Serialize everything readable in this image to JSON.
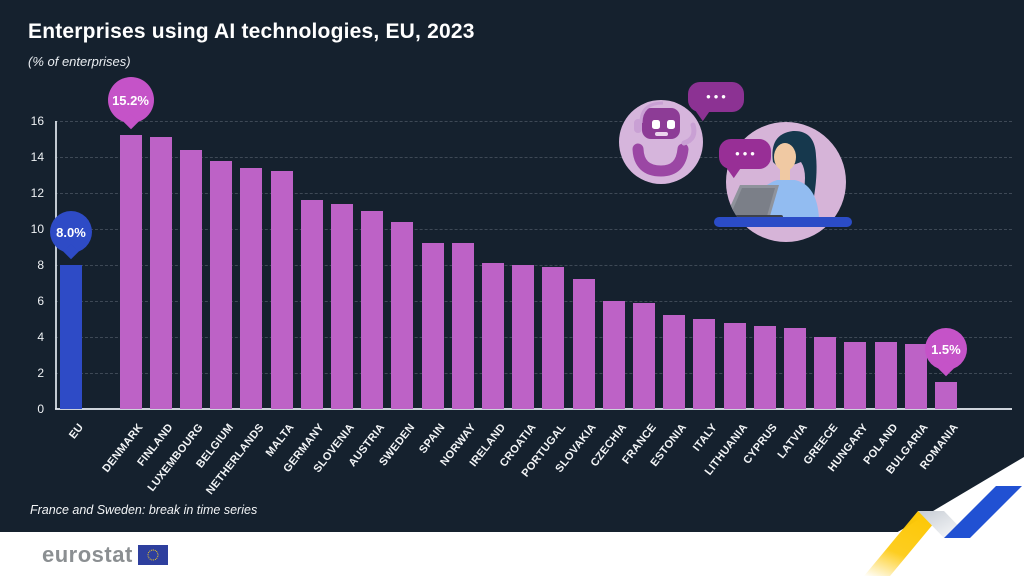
{
  "header": {
    "title": "Enterprises using AI technologies, EU, 2023",
    "subtitle": "(% of enterprises)"
  },
  "note": "France and Sweden: break in time series",
  "footer": {
    "logo_text": "eurostat"
  },
  "illustration": {
    "robot_bubble_dots": "•••",
    "woman_bubble_dots": "•••"
  },
  "colors": {
    "background": "#15212e",
    "bar_default": "#bd62c6",
    "bar_eu": "#2e4bc6",
    "callout_magenta": "#c553c8",
    "callout_blue": "#2e4bc6",
    "gridline": "#3e4956",
    "axis": "#e1e7ee",
    "footer_white": "#ffffff",
    "swoosh_yellow": "#fdc808",
    "swoosh_blue": "#2151d3",
    "swoosh_gray": "#c6ccd4"
  },
  "chart_data": {
    "type": "bar",
    "title": "Enterprises using AI technologies, EU, 2023",
    "subtitle": "(% of enterprises)",
    "xlabel": "",
    "ylabel": "% of enterprises",
    "ylim": [
      0,
      16
    ],
    "yticks": [
      0,
      2,
      4,
      6,
      8,
      10,
      12,
      14,
      16
    ],
    "grid": true,
    "legend": "none",
    "categories": [
      "EU",
      "DENMARK",
      "FINLAND",
      "LUXEMBOURG",
      "BELGIUM",
      "NETHERLANDS",
      "MALTA",
      "GERMANY",
      "SLOVENIA",
      "AUSTRIA",
      "SWEDEN",
      "SPAIN",
      "NORWAY",
      "IRELAND",
      "CROATIA",
      "PORTUGAL",
      "SLOVAKIA",
      "CZECHIA",
      "FRANCE",
      "ESTONIA",
      "ITALY",
      "LITHUANIA",
      "CYPRUS",
      "LATVIA",
      "GREECE",
      "HUNGARY",
      "POLAND",
      "BULGARIA",
      "ROMANIA"
    ],
    "values": [
      8.0,
      15.2,
      15.1,
      14.4,
      13.8,
      13.4,
      13.2,
      11.6,
      11.4,
      11.0,
      10.4,
      9.2,
      9.2,
      8.1,
      8.0,
      7.9,
      7.2,
      6.0,
      5.9,
      5.2,
      5.0,
      4.8,
      4.6,
      4.5,
      4.0,
      3.7,
      3.7,
      3.6,
      1.5
    ],
    "highlight_category": "EU",
    "callouts": [
      {
        "category": "EU",
        "label": "8.0%",
        "color": "#2e4bc6"
      },
      {
        "category": "DENMARK",
        "label": "15.2%",
        "color": "#c553c8"
      },
      {
        "category": "ROMANIA",
        "label": "1.5%",
        "color": "#c553c8"
      }
    ]
  }
}
